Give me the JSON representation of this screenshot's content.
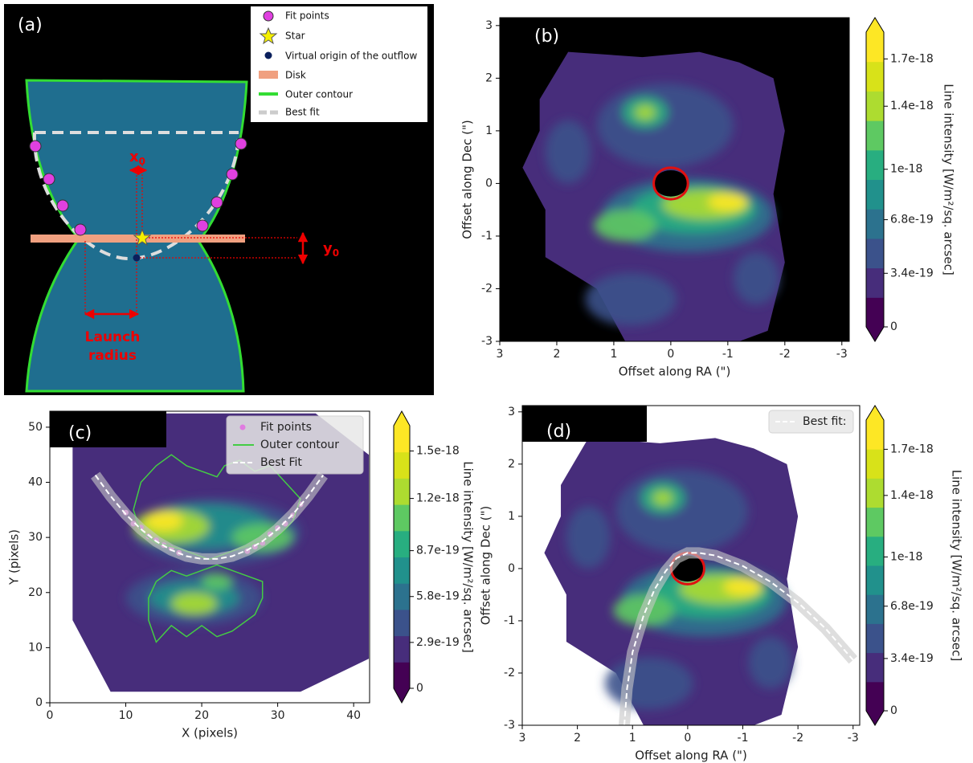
{
  "diagram": {
    "label": "(a)",
    "legend": [
      "Fit points",
      "Star",
      "Virtual origin of the outflow",
      "Disk",
      "Outer contour",
      "Best fit"
    ],
    "x0": {
      "symbol": "x",
      "subscript": "0"
    },
    "y0": {
      "symbol": "y",
      "subscript": "0"
    },
    "launch_radius": [
      "Launch",
      "radius"
    ]
  },
  "chart_data": [
    {
      "type": "contour",
      "title": "(b)",
      "background": "#000000",
      "xlabel": "Offset along RA (\")",
      "ylabel": "Offset along Dec (\")",
      "xlim": [
        3,
        -3.13
      ],
      "ylim": [
        -3,
        3.15
      ],
      "xticks": [
        3,
        2,
        1,
        0,
        -1,
        -2,
        -3
      ],
      "yticks": [
        -3,
        -2,
        -1,
        0,
        1,
        2,
        3
      ],
      "colorbar": {
        "label": "Line intensity [W/m²/sq. arcsec]",
        "lim": [
          0,
          1.87e-18
        ],
        "ticks": [
          0,
          3.4e-19,
          6.8e-19,
          1e-18,
          1.4e-18,
          1.7e-18
        ]
      },
      "series": []
    },
    {
      "type": "contour",
      "title": "(c)",
      "background": "#ffffff",
      "xlabel": "X (pixels)",
      "ylabel": "Y (pixels)",
      "xlim": [
        0,
        42.1
      ],
      "ylim": [
        0,
        52.9
      ],
      "xticks": [
        0,
        10,
        20,
        30,
        40
      ],
      "yticks": [
        0,
        10,
        20,
        30,
        40,
        50
      ],
      "colorbar": {
        "label": "Line intensity [W/m²/sq. arcsec]",
        "lim": [
          0,
          1.66e-18
        ],
        "ticks": [
          0,
          2.9e-19,
          5.8e-19,
          8.7e-19,
          1.2e-18,
          1.5e-18
        ]
      },
      "legend": "upper right",
      "series": [
        {
          "name": "Fit points",
          "color": "#e07be0",
          "style": "points",
          "x": [
            10,
            11,
            12,
            13,
            14,
            15,
            16,
            17,
            26,
            27,
            28,
            29,
            30,
            31,
            32,
            33
          ],
          "values": [
            34.5,
            32.5,
            31.8,
            30.2,
            29.5,
            28.6,
            28,
            27.2,
            27.5,
            28.3,
            29,
            30.6,
            31.7,
            32.5,
            34,
            36
          ]
        },
        {
          "name": "Outer contour",
          "color": "#44cc44",
          "style": "line",
          "x": [
            11,
            12,
            14,
            16,
            18,
            20,
            22,
            23,
            25,
            27,
            29,
            31,
            33,
            32,
            30,
            27,
            25,
            23,
            21,
            19,
            17,
            14,
            12,
            11,
            null,
            14,
            16,
            18,
            20,
            22,
            24,
            26,
            28,
            28,
            27,
            24,
            22,
            20,
            18,
            16,
            14,
            13,
            13,
            14
          ],
          "values": [
            35,
            40,
            43,
            45,
            43,
            42,
            41,
            43,
            44,
            42,
            43,
            40,
            37,
            33,
            30,
            29,
            28,
            27,
            26,
            27,
            28,
            29,
            31,
            35,
            null,
            22,
            24,
            23,
            24,
            25,
            24,
            23,
            22,
            19,
            16,
            13,
            12,
            14,
            12,
            14,
            11,
            15,
            19,
            22
          ]
        },
        {
          "name": "Best Fit",
          "color": "#ffffff",
          "style": "dashed",
          "x": [
            6,
            8,
            10,
            12,
            14,
            16,
            18,
            20,
            22,
            24,
            26,
            28,
            30,
            32,
            34,
            36
          ],
          "values": [
            41.3,
            37.5,
            34.2,
            31.5,
            29.3,
            27.7,
            26.6,
            26.1,
            26.1,
            26.6,
            27.7,
            29.3,
            31.5,
            34.2,
            37.5,
            41.3
          ]
        }
      ]
    },
    {
      "type": "contour",
      "title": "(d)",
      "background": "#ffffff",
      "xlabel": "Offset along RA (\")",
      "ylabel": "Offset along Dec (\")",
      "xlim": [
        3,
        -3.12
      ],
      "ylim": [
        -3,
        3.12
      ],
      "xticks": [
        3,
        2,
        1,
        0,
        -1,
        -2,
        -3
      ],
      "yticks": [
        -3,
        -2,
        -1,
        0,
        1,
        2,
        3
      ],
      "colorbar": {
        "label": "Line intensity [W/m²/sq. arcsec]",
        "lim": [
          0,
          1.89e-18
        ],
        "ticks": [
          0,
          3.4e-19,
          6.8e-19,
          1e-18,
          1.4e-18,
          1.7e-18
        ]
      },
      "legend": "upper right",
      "series": [
        {
          "name": "Best fit:",
          "color": "#ffffff",
          "style": "dashed",
          "x": [
            1.15,
            1.1,
            1.0,
            0.8,
            0.6,
            0.4,
            0.2,
            0,
            -0.2,
            -0.5,
            -1,
            -1.5,
            -2,
            -2.5,
            -3
          ],
          "values": [
            -3,
            -2.3,
            -1.6,
            -0.9,
            -0.4,
            -0.05,
            0.2,
            0.3,
            0.3,
            0.25,
            0.05,
            -0.25,
            -0.65,
            -1.15,
            -1.75
          ]
        }
      ]
    }
  ]
}
